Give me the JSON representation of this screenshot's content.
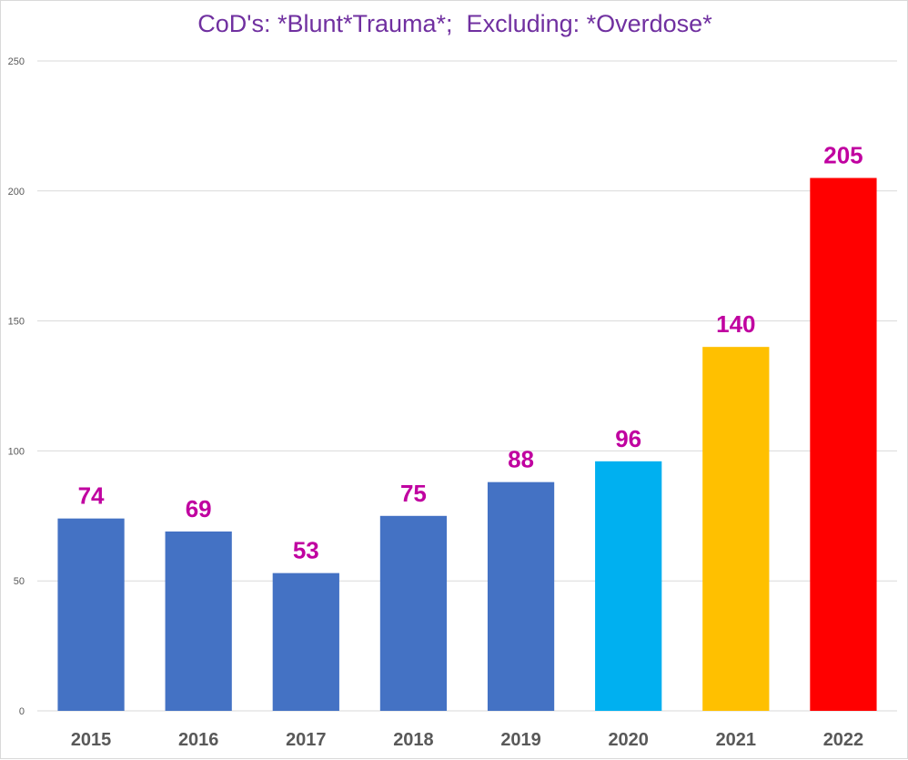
{
  "chart_data": {
    "type": "bar",
    "title": "CoD's: *Blunt*Trauma*;  Excluding: *Overdose*",
    "xlabel": "",
    "ylabel": "",
    "ylim": [
      0,
      250
    ],
    "yticks": [
      0,
      50,
      100,
      150,
      200,
      250
    ],
    "grid": true,
    "legend": "none",
    "categories": [
      "2015",
      "2016",
      "2017",
      "2018",
      "2019",
      "2020",
      "2021",
      "2022"
    ],
    "values": [
      74,
      69,
      53,
      75,
      88,
      96,
      140,
      205
    ],
    "bar_colors": [
      "#4472c4",
      "#4472c4",
      "#4472c4",
      "#4472c4",
      "#4472c4",
      "#00b0f0",
      "#ffc000",
      "#ff0000"
    ],
    "label_color": "#c000a0",
    "title_color": "#7030a0",
    "tick_color": "#595959",
    "grid_color": "#d9d9d9"
  }
}
